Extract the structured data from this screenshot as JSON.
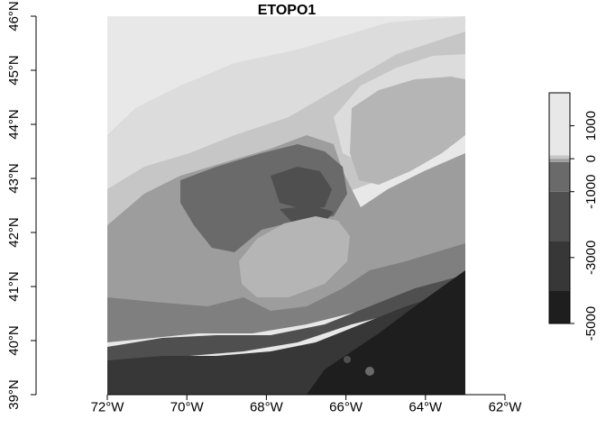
{
  "title": "ETOPO1",
  "map": {
    "xlim": [
      -72,
      -62
    ],
    "ylim": [
      39,
      46
    ],
    "data_extent": {
      "lon": [
        -71.8,
        -63
      ],
      "lat": [
        39,
        46
      ]
    },
    "x_ticks": [
      {
        "value": -72,
        "label": "72°W"
      },
      {
        "value": -70,
        "label": "70°W"
      },
      {
        "value": -68,
        "label": "68°W"
      },
      {
        "value": -66,
        "label": "66°W"
      },
      {
        "value": -64,
        "label": "64°W"
      },
      {
        "value": -62,
        "label": "62°W"
      }
    ],
    "y_ticks": [
      {
        "value": 39,
        "label": "39°N"
      },
      {
        "value": 40,
        "label": "40°N"
      },
      {
        "value": 41,
        "label": "41°N"
      },
      {
        "value": 42,
        "label": "42°N"
      },
      {
        "value": 43,
        "label": "43°N"
      },
      {
        "value": 44,
        "label": "44°N"
      },
      {
        "value": 45,
        "label": "45°N"
      },
      {
        "value": 46,
        "label": "46°N"
      }
    ]
  },
  "legend": {
    "range": [
      -5000,
      2000
    ],
    "bands": [
      {
        "from": -5000,
        "to": -4000,
        "color": "#1e1e1e"
      },
      {
        "from": -4000,
        "to": -2500,
        "color": "#373737"
      },
      {
        "from": -2500,
        "to": -1000,
        "color": "#4f4f4f"
      },
      {
        "from": -1000,
        "to": -100,
        "color": "#6a6a6a"
      },
      {
        "from": -100,
        "to": 0,
        "color": "#9d9d9d"
      },
      {
        "from": 0,
        "to": 100,
        "color": "#c6c6c6"
      },
      {
        "from": 100,
        "to": 2000,
        "color": "#e8e8e8"
      }
    ],
    "ticks": [
      {
        "value": -5000,
        "label": "-5000"
      },
      {
        "value": -3000,
        "label": "-3000"
      },
      {
        "value": -1000,
        "label": "-1000"
      },
      {
        "value": 0,
        "label": "0"
      },
      {
        "value": 1000,
        "label": "1000"
      }
    ]
  },
  "colors": {
    "abyssal": "#1e1e1e",
    "deep": "#373737",
    "slope": "#4f4f4f",
    "basin": "#6a6a6a",
    "shelf_deep": "#7f7f7f",
    "shelf": "#9d9d9d",
    "bank": "#b5b5b5",
    "lowland": "#c6c6c6",
    "upland": "#dcdcdc",
    "highland": "#e8e8e8"
  }
}
